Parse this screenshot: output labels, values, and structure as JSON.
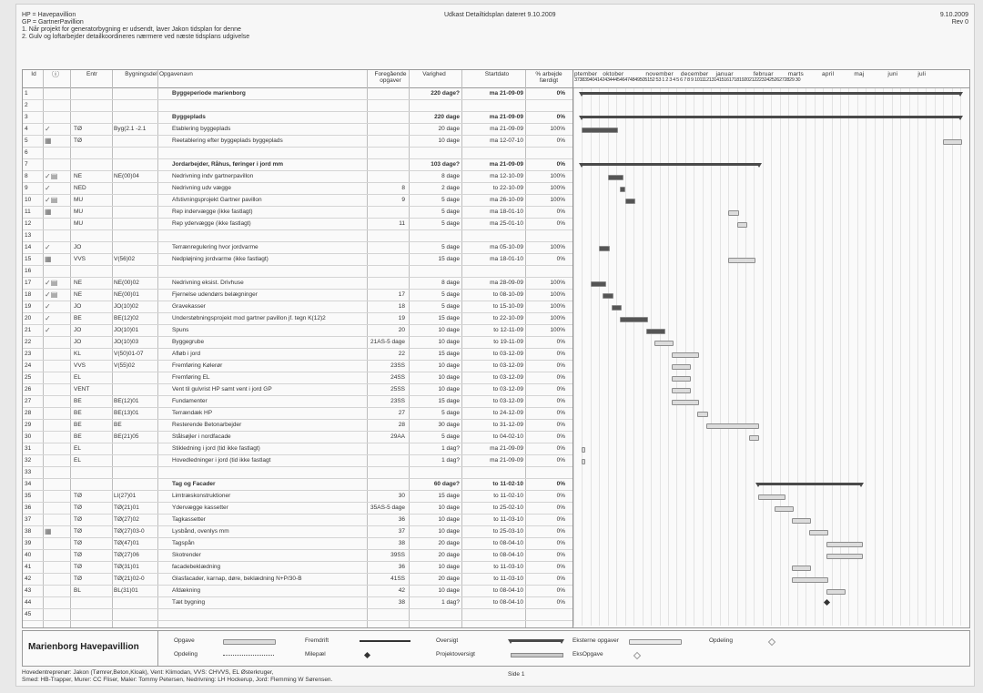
{
  "header": {
    "left": [
      "HP = Havepavillion",
      "GP = GartnerPavillion",
      "1. Når projekt for generatorbygning er udsendt, laver Jakon tidsplan for denne",
      "2. Gulv og loftarbejder detailkoordineres nærmere ved næste tidsplans udgivelse"
    ],
    "center": "Udkast Detailtidsplan dateret 9.10.2009",
    "right": [
      "9.10.2009",
      "Rev 0"
    ]
  },
  "columns": {
    "id": "Id",
    "entr": "Entr",
    "byg": "Bygningsdel",
    "name": "Opgavenavn",
    "pred": [
      "Foregående",
      "opgaver"
    ],
    "dur": "Varighed",
    "start": "Startdato",
    "pct": [
      "% arbejde",
      "færdigt"
    ]
  },
  "timescale": {
    "months": [
      "ptember",
      "oktober",
      "november",
      "december",
      "januar",
      "februar",
      "marts",
      "april",
      "maj",
      "juni",
      "juli"
    ],
    "weeks": "37383940414243444546474849505152 53 1 2 3 4 5 6 7 8 9 1011121314151617181920212223242526272829 30"
  },
  "rows": [
    {
      "id": "1",
      "ind": "",
      "entr": "",
      "byg": "",
      "name": "Byggeperiode marienborg",
      "pred": "",
      "dur": "220 dage?",
      "start": "ma 21-09-09",
      "pct": "0%",
      "bold": true
    },
    {
      "id": "2",
      "ind": "",
      "entr": "",
      "byg": "",
      "name": "",
      "pred": "",
      "dur": "",
      "start": "",
      "pct": ""
    },
    {
      "id": "3",
      "ind": "",
      "entr": "",
      "byg": "",
      "name": "Byggeplads",
      "pred": "",
      "dur": "220 dage",
      "start": "ma 21-09-09",
      "pct": "0%",
      "bold": true
    },
    {
      "id": "4",
      "ind": "✓",
      "entr": "TØ",
      "byg": "Byg(2.1 -2.1",
      "name": "Etablering byggeplads",
      "pred": "",
      "dur": "20 dage",
      "start": "ma 21-09-09",
      "pct": "100%"
    },
    {
      "id": "5",
      "ind": "▦",
      "entr": "TØ",
      "byg": "",
      "name": "Reetablering efter byggeplads byggeplads",
      "pred": "",
      "dur": "10 dage",
      "start": "ma 12-07-10",
      "pct": "0%"
    },
    {
      "id": "6",
      "ind": "",
      "entr": "",
      "byg": "",
      "name": "",
      "pred": "",
      "dur": "",
      "start": "",
      "pct": ""
    },
    {
      "id": "7",
      "ind": "",
      "entr": "",
      "byg": "",
      "name": "Jordarbejder, Råhus, føringer i jord mm",
      "pred": "",
      "dur": "103 dage?",
      "start": "ma 21-09-09",
      "pct": "0%",
      "bold": true
    },
    {
      "id": "8",
      "ind": "✓▤",
      "entr": "NE",
      "byg": "NE(00)04",
      "name": "Nedrivning indv gartnerpavillon",
      "pred": "",
      "dur": "8 dage",
      "start": "ma 12-10-09",
      "pct": "100%"
    },
    {
      "id": "9",
      "ind": "✓",
      "entr": "NED",
      "byg": "",
      "name": "Nedrivning udv vægge",
      "pred": "8",
      "dur": "2 dage",
      "start": "to 22-10-09",
      "pct": "100%"
    },
    {
      "id": "10",
      "ind": "✓▤",
      "entr": "MU",
      "byg": "",
      "name": "Afstivningsprojekt Gartner pavillon",
      "pred": "9",
      "dur": "5 dage",
      "start": "ma 26-10-09",
      "pct": "100%"
    },
    {
      "id": "11",
      "ind": "▦",
      "entr": "MU",
      "byg": "",
      "name": "Rep indervægge (ikke fastlagt)",
      "pred": "",
      "dur": "5 dage",
      "start": "ma 18-01-10",
      "pct": "0%"
    },
    {
      "id": "12",
      "ind": "",
      "entr": "MU",
      "byg": "",
      "name": "Rep ydervægge (ikke fastlagt)",
      "pred": "11",
      "dur": "5 dage",
      "start": "ma 25-01-10",
      "pct": "0%"
    },
    {
      "id": "13",
      "ind": "",
      "entr": "",
      "byg": "",
      "name": "",
      "pred": "",
      "dur": "",
      "start": "",
      "pct": ""
    },
    {
      "id": "14",
      "ind": "✓",
      "entr": "JO",
      "byg": "",
      "name": "Terrænregulering hvor jordvarme",
      "pred": "",
      "dur": "5 dage",
      "start": "ma 05-10-09",
      "pct": "100%"
    },
    {
      "id": "15",
      "ind": "▦",
      "entr": "VVS",
      "byg": "V(56)02",
      "name": "Nedpløjning jordvarme (ikke fastlagt)",
      "pred": "",
      "dur": "15 dage",
      "start": "ma 18-01-10",
      "pct": "0%"
    },
    {
      "id": "16",
      "ind": "",
      "entr": "",
      "byg": "",
      "name": "",
      "pred": "",
      "dur": "",
      "start": "",
      "pct": ""
    },
    {
      "id": "17",
      "ind": "✓▤",
      "entr": "NE",
      "byg": "NE(00)02",
      "name": "Nedrivning eksist. Drivhuse",
      "pred": "",
      "dur": "8 dage",
      "start": "ma 28-09-09",
      "pct": "100%"
    },
    {
      "id": "18",
      "ind": "✓▤",
      "entr": "NE",
      "byg": "NE(00)01",
      "name": "Fjernelse udendørs belægninger",
      "pred": "17",
      "dur": "5 dage",
      "start": "to 08-10-09",
      "pct": "100%"
    },
    {
      "id": "19",
      "ind": "✓",
      "entr": "JO",
      "byg": "JO(10)02",
      "name": "Gravekasser",
      "pred": "18",
      "dur": "5 dage",
      "start": "to 15-10-09",
      "pct": "100%"
    },
    {
      "id": "20",
      "ind": "✓",
      "entr": "BE",
      "byg": "BE(12)02",
      "name": "Understøbningsprojekt mod gartner pavillon jf. tegn K(12)2",
      "pred": "19",
      "dur": "15 dage",
      "start": "to 22-10-09",
      "pct": "100%"
    },
    {
      "id": "21",
      "ind": "✓",
      "entr": "JO",
      "byg": "JO(10)01",
      "name": "Spuns",
      "pred": "20",
      "dur": "10 dage",
      "start": "to 12-11-09",
      "pct": "100%"
    },
    {
      "id": "22",
      "ind": "",
      "entr": "JO",
      "byg": "JO(10)03",
      "name": "Byggegrube",
      "pred": "21AS-5 dage",
      "dur": "10 dage",
      "start": "to 19-11-09",
      "pct": "0%"
    },
    {
      "id": "23",
      "ind": "",
      "entr": "KL",
      "byg": "V(50)01-07",
      "name": "Afløb i jord",
      "pred": "22",
      "dur": "15 dage",
      "start": "to 03-12-09",
      "pct": "0%"
    },
    {
      "id": "24",
      "ind": "",
      "entr": "VVS",
      "byg": "V(55)02",
      "name": "Fremføring Kølerør",
      "pred": "23SS",
      "dur": "10 dage",
      "start": "to 03-12-09",
      "pct": "0%"
    },
    {
      "id": "25",
      "ind": "",
      "entr": "EL",
      "byg": "",
      "name": "Fremføring EL",
      "pred": "24SS",
      "dur": "10 dage",
      "start": "to 03-12-09",
      "pct": "0%"
    },
    {
      "id": "26",
      "ind": "",
      "entr": "VENT",
      "byg": "",
      "name": "Vent til gulvrist HP samt vent i jord GP",
      "pred": "25SS",
      "dur": "10 dage",
      "start": "to 03-12-09",
      "pct": "0%"
    },
    {
      "id": "27",
      "ind": "",
      "entr": "BE",
      "byg": "BE(12)01",
      "name": "Fundamenter",
      "pred": "23SS",
      "dur": "15 dage",
      "start": "to 03-12-09",
      "pct": "0%"
    },
    {
      "id": "28",
      "ind": "",
      "entr": "BE",
      "byg": "BE(13)01",
      "name": "Terrændæk HP",
      "pred": "27",
      "dur": "5 dage",
      "start": "to 24-12-09",
      "pct": "0%"
    },
    {
      "id": "29",
      "ind": "",
      "entr": "BE",
      "byg": "BE",
      "name": "Resterende Betonarbejder",
      "pred": "28",
      "dur": "30 dage",
      "start": "to 31-12-09",
      "pct": "0%"
    },
    {
      "id": "30",
      "ind": "",
      "entr": "BE",
      "byg": "BE(21)05",
      "name": "Stålsøjler i nordfacade",
      "pred": "29AA",
      "dur": "5 dage",
      "start": "to 04-02-10",
      "pct": "0%"
    },
    {
      "id": "31",
      "ind": "",
      "entr": "EL",
      "byg": "",
      "name": "Stikledning i jord (tid ikke fastlagt)",
      "pred": "",
      "dur": "1 dag?",
      "start": "ma 21-09-09",
      "pct": "0%"
    },
    {
      "id": "32",
      "ind": "",
      "entr": "EL",
      "byg": "",
      "name": "Hovedledninger i jord (tid ikke fastlagt",
      "pred": "",
      "dur": "1 dag?",
      "start": "ma 21-09-09",
      "pct": "0%"
    },
    {
      "id": "33",
      "ind": "",
      "entr": "",
      "byg": "",
      "name": "",
      "pred": "",
      "dur": "",
      "start": "",
      "pct": ""
    },
    {
      "id": "34",
      "ind": "",
      "entr": "",
      "byg": "",
      "name": "Tag og Facader",
      "pred": "",
      "dur": "60 dage?",
      "start": "to 11-02-10",
      "pct": "0%",
      "bold": true
    },
    {
      "id": "35",
      "ind": "",
      "entr": "TØ",
      "byg": "LI(27)01",
      "name": "Limtræskonstruktioner",
      "pred": "30",
      "dur": "15 dage",
      "start": "to 11-02-10",
      "pct": "0%"
    },
    {
      "id": "36",
      "ind": "",
      "entr": "TØ",
      "byg": "TØ(21)01",
      "name": "Ydervægge kassetter",
      "pred": "35AS-5 dage",
      "dur": "10 dage",
      "start": "to 25-02-10",
      "pct": "0%"
    },
    {
      "id": "37",
      "ind": "",
      "entr": "TØ",
      "byg": "TØ(27)02",
      "name": "Tagkassetter",
      "pred": "36",
      "dur": "10 dage",
      "start": "to 11-03-10",
      "pct": "0%"
    },
    {
      "id": "38",
      "ind": "▦",
      "entr": "TØ",
      "byg": "TØ(27)03-0",
      "name": "Lysbånd, ovenlys mm",
      "pred": "37",
      "dur": "10 dage",
      "start": "to 25-03-10",
      "pct": "0%"
    },
    {
      "id": "39",
      "ind": "",
      "entr": "TØ",
      "byg": "TØ(47)01",
      "name": "Tagspån",
      "pred": "38",
      "dur": "20 dage",
      "start": "to 08-04-10",
      "pct": "0%"
    },
    {
      "id": "40",
      "ind": "",
      "entr": "TØ",
      "byg": "TØ(27)06",
      "name": "Skotrender",
      "pred": "39SS",
      "dur": "20 dage",
      "start": "to 08-04-10",
      "pct": "0%"
    },
    {
      "id": "41",
      "ind": "",
      "entr": "TØ",
      "byg": "TØ(31)01",
      "name": "facadebeklædning",
      "pred": "36",
      "dur": "10 dage",
      "start": "to 11-03-10",
      "pct": "0%"
    },
    {
      "id": "42",
      "ind": "",
      "entr": "TØ",
      "byg": "TØ(21)02-0",
      "name": "Glasfacader, karnap, døre, beklædning N+P/30-B",
      "pred": "41SS",
      "dur": "20 dage",
      "start": "to 11-03-10",
      "pct": "0%"
    },
    {
      "id": "43",
      "ind": "",
      "entr": "BL",
      "byg": "BL(31)01",
      "name": "Afdækning",
      "pred": "42",
      "dur": "10 dage",
      "start": "to 08-04-10",
      "pct": "0%"
    },
    {
      "id": "44",
      "ind": "",
      "entr": "",
      "byg": "",
      "name": "Tæt bygning",
      "pred": "38",
      "dur": "1 dag?",
      "start": "to 08-04-10",
      "pct": "0%"
    },
    {
      "id": "45",
      "ind": "",
      "entr": "",
      "byg": "",
      "name": "",
      "pred": "",
      "dur": "",
      "start": "",
      "pct": ""
    }
  ],
  "legend": {
    "project": "Marienborg Havepavillion",
    "items": [
      "Opgave",
      "Opdeling",
      "Fremdrift",
      "Milepæl",
      "Oversigt",
      "Projektoversigt",
      "Eksterne opgaver",
      "EksOpgave",
      "Opdeling"
    ]
  },
  "footer": {
    "line1": "Hovedentreprenør: Jakon (Tømrer,Beton,Kloak), Vent: Klimodan, VVS: CHVVS, EL Østerkruger,",
    "line2": "Smed: HB-Trapper, Murer: CC Fliser, Maler: Tommy Petersen, Nedrivning: LH Hockerup, Jord: Flemming W Sørensen.",
    "page": "Side 1"
  }
}
